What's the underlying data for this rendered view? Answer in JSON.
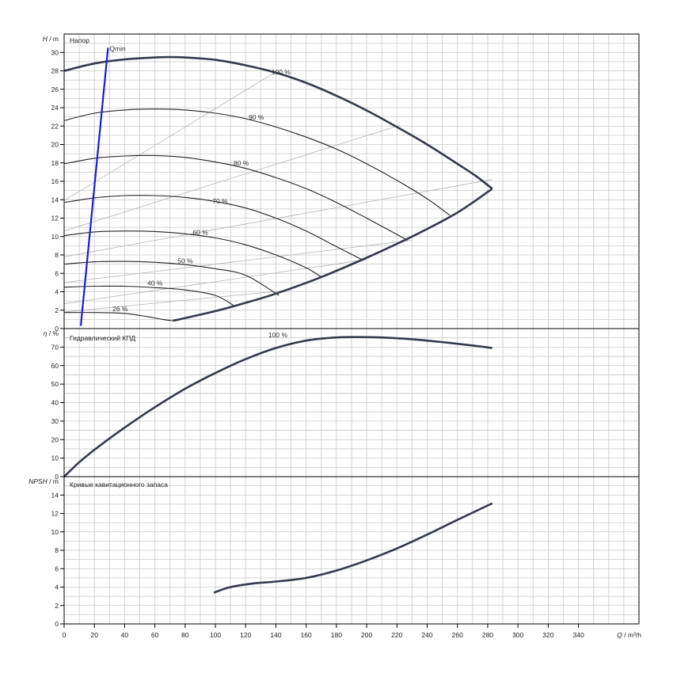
{
  "chart_data": [
    {
      "type": "line",
      "title": "Напор",
      "ylabel_symbol": "H",
      "ylabel_unit": "/ m",
      "xlim": [
        0,
        380
      ],
      "ylim": [
        0,
        32
      ],
      "y_ticks": [
        0,
        2,
        4,
        6,
        8,
        10,
        12,
        14,
        16,
        18,
        20,
        22,
        24,
        26,
        28,
        30
      ],
      "grid": true,
      "speed_curves": [
        {
          "label": "100 %",
          "x": [
            0,
            20,
            40,
            60,
            70,
            80,
            100,
            120,
            140,
            160,
            180,
            200,
            220,
            240,
            260,
            272,
            283
          ],
          "y": [
            28,
            28.8,
            29.25,
            29.45,
            29.5,
            29.45,
            29.2,
            28.6,
            27.8,
            26.7,
            25.3,
            23.7,
            21.9,
            20.0,
            17.9,
            16.6,
            15.2
          ]
        },
        {
          "label": "90 %",
          "x": [
            0,
            20,
            40,
            60,
            80,
            100,
            120,
            140,
            160,
            180,
            200,
            220,
            240,
            255
          ],
          "y": [
            22.6,
            23.4,
            23.75,
            23.85,
            23.75,
            23.4,
            22.8,
            21.9,
            20.8,
            19.5,
            17.9,
            16.1,
            14.1,
            12.3
          ]
        },
        {
          "label": "80 %",
          "x": [
            0,
            20,
            40,
            60,
            80,
            100,
            120,
            140,
            160,
            180,
            200,
            227
          ],
          "y": [
            17.9,
            18.5,
            18.75,
            18.8,
            18.6,
            18.1,
            17.4,
            16.4,
            15.2,
            13.7,
            12.0,
            9.6
          ]
        },
        {
          "label": "70 %",
          "x": [
            0,
            20,
            40,
            60,
            80,
            100,
            120,
            140,
            160,
            180,
            198
          ],
          "y": [
            13.7,
            14.2,
            14.45,
            14.45,
            14.25,
            13.8,
            13.1,
            12.0,
            10.6,
            8.9,
            7.4
          ]
        },
        {
          "label": "60 %",
          "x": [
            0,
            20,
            40,
            60,
            80,
            100,
            120,
            140,
            160,
            170
          ],
          "y": [
            10.1,
            10.5,
            10.6,
            10.55,
            10.3,
            9.85,
            9.1,
            8.0,
            6.6,
            5.6
          ]
        },
        {
          "label": "50 %",
          "x": [
            0,
            20,
            40,
            60,
            80,
            100,
            120,
            142
          ],
          "y": [
            7.0,
            7.25,
            7.3,
            7.2,
            6.95,
            6.5,
            5.8,
            3.6
          ]
        },
        {
          "label": "40 %",
          "x": [
            0,
            20,
            40,
            60,
            80,
            100,
            113
          ],
          "y": [
            4.5,
            4.6,
            4.6,
            4.45,
            4.2,
            3.6,
            2.4
          ]
        },
        {
          "label": "26 %",
          "x": [
            0,
            20,
            40,
            55,
            65,
            72
          ],
          "y": [
            1.75,
            1.75,
            1.65,
            1.3,
            1.0,
            0.85
          ]
        }
      ],
      "limit_curve": {
        "x": [
          72,
          100,
          120,
          140,
          170,
          200,
          230,
          260,
          283
        ],
        "y": [
          0.85,
          1.9,
          2.8,
          3.8,
          5.6,
          7.7,
          10.0,
          12.6,
          15.2
        ]
      },
      "qmin": {
        "label": "Qmin",
        "x": [
          11,
          29
        ],
        "y": [
          0.3,
          30.5
        ]
      },
      "iso_lines": [
        {
          "x": [
            0,
            137
          ],
          "y": [
            13.9,
            27.6
          ]
        },
        {
          "x": [
            0,
            222
          ],
          "y": [
            10.6,
            22.1
          ]
        },
        {
          "x": [
            0,
            283
          ],
          "y": [
            7.8,
            16.2
          ]
        },
        {
          "x": [
            0,
            230
          ],
          "y": [
            5.0,
            9.6
          ]
        },
        {
          "x": [
            0,
            200
          ],
          "y": [
            2.7,
            7.5
          ]
        },
        {
          "x": [
            0,
            150
          ],
          "y": [
            1.8,
            4.2
          ]
        }
      ]
    },
    {
      "type": "line",
      "title": "Гидравлический КПД",
      "ylabel_symbol": "η",
      "ylabel_unit": "/ %",
      "xlim": [
        0,
        380
      ],
      "ylim": [
        0,
        80
      ],
      "y_ticks": [
        0,
        10,
        20,
        30,
        40,
        50,
        60,
        70
      ],
      "grid": true,
      "curve_label": "100 %",
      "x": [
        0,
        10,
        20,
        40,
        60,
        80,
        100,
        120,
        140,
        160,
        180,
        200,
        220,
        240,
        260,
        283
      ],
      "y": [
        0,
        7.8,
        14.5,
        26.5,
        37.5,
        47.5,
        56.0,
        63.5,
        69.5,
        73.5,
        75.2,
        75.4,
        74.8,
        73.5,
        71.8,
        69.5
      ]
    },
    {
      "type": "line",
      "title": "Кривые кавитационного запаса",
      "ylabel_symbol": "NPSH",
      "ylabel_unit": "/ m",
      "xlabel_symbol": "Q",
      "xlabel_unit": "/ m³/h",
      "xlim": [
        0,
        380
      ],
      "ylim": [
        0,
        16
      ],
      "y_ticks": [
        0,
        2,
        4,
        6,
        8,
        10,
        12,
        14
      ],
      "x_ticks": [
        0,
        20,
        40,
        60,
        80,
        100,
        120,
        140,
        160,
        180,
        200,
        220,
        240,
        260,
        280,
        300,
        320,
        340
      ],
      "grid": true,
      "x": [
        99,
        110,
        125,
        140,
        160,
        180,
        200,
        220,
        240,
        260,
        283
      ],
      "y": [
        3.4,
        4.0,
        4.4,
        4.6,
        5.0,
        5.8,
        6.9,
        8.2,
        9.7,
        11.3,
        13.1
      ]
    }
  ]
}
